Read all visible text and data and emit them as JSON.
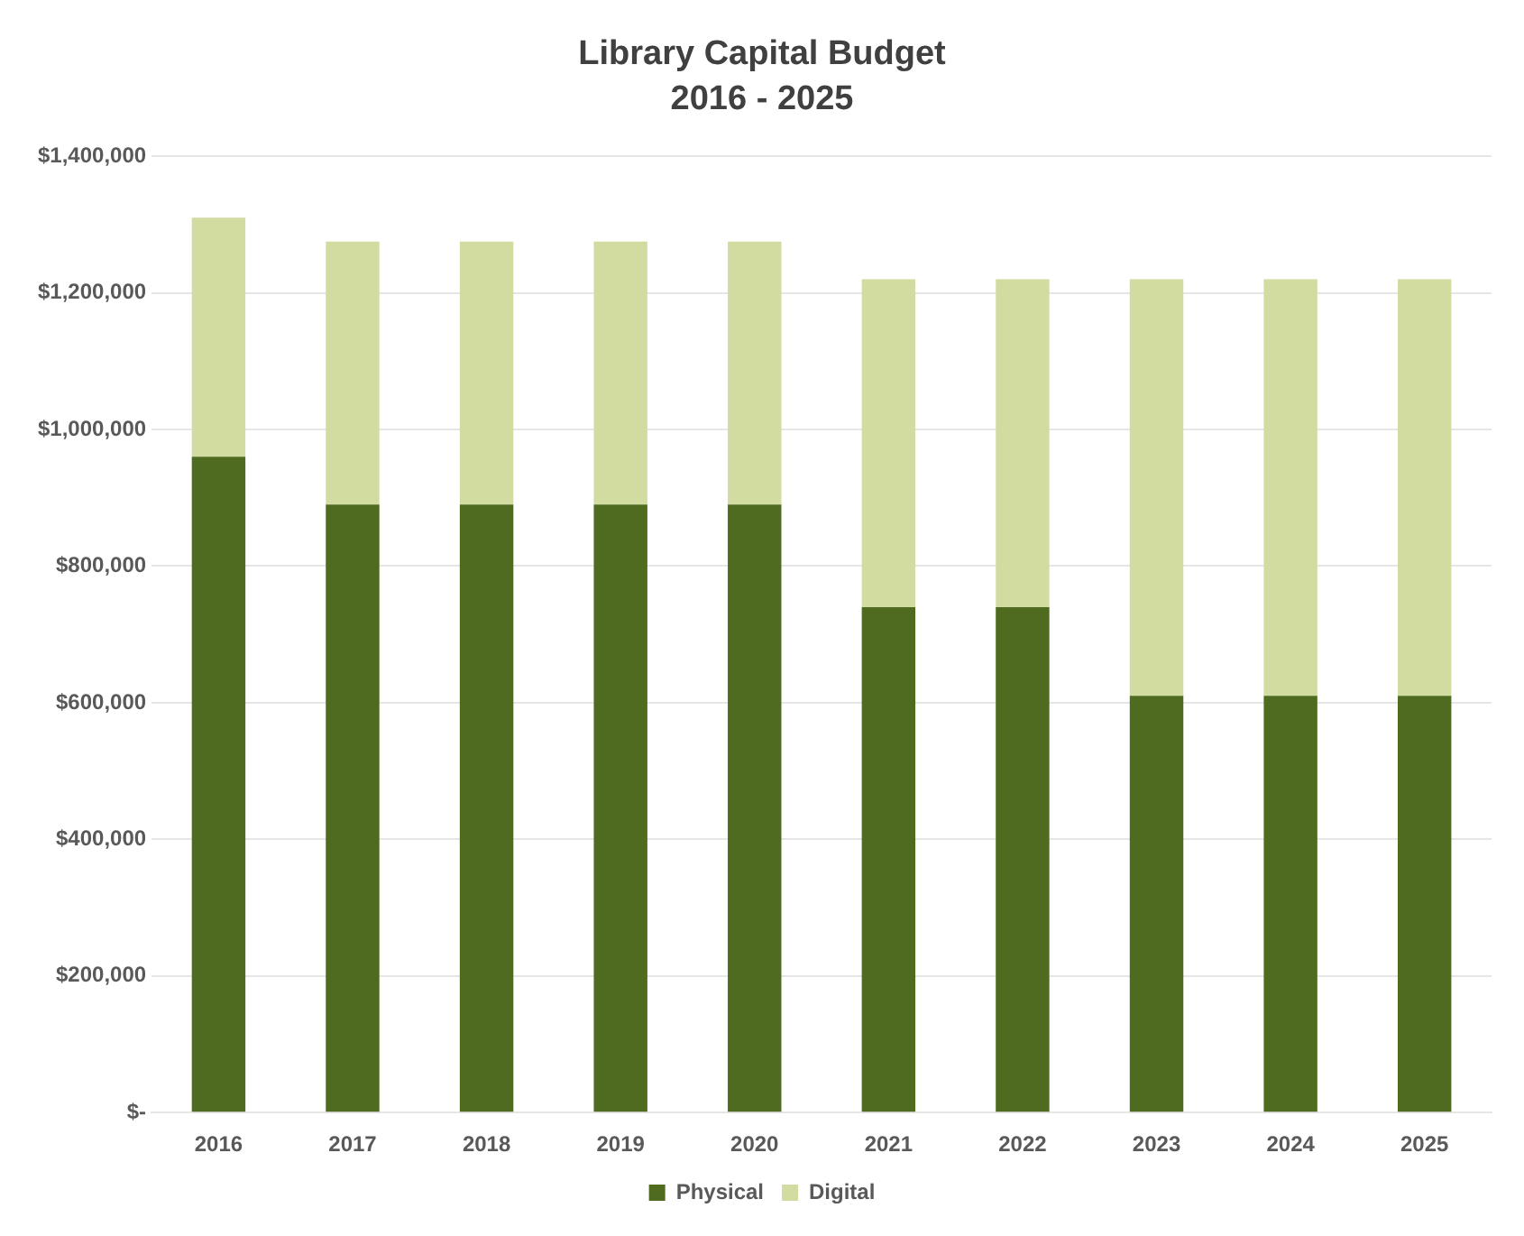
{
  "chart_data": {
    "type": "bar",
    "title": "Library Capital Budget",
    "subtitle": "2016 - 2025",
    "categories": [
      "2016",
      "2017",
      "2018",
      "2019",
      "2020",
      "2021",
      "2022",
      "2023",
      "2024",
      "2025"
    ],
    "series": [
      {
        "name": "Physical",
        "color": "#4e6b1f",
        "values": [
          960000,
          890000,
          890000,
          890000,
          890000,
          740000,
          740000,
          610000,
          610000,
          610000
        ]
      },
      {
        "name": "Digital",
        "color": "#d3dca0",
        "values": [
          350000,
          385000,
          385000,
          385000,
          385000,
          480000,
          480000,
          610000,
          610000,
          610000
        ]
      }
    ],
    "stacked": true,
    "ylim": [
      0,
      1400000
    ],
    "yticks": [
      {
        "value": 0,
        "label": "$-"
      },
      {
        "value": 200000,
        "label": "$200,000"
      },
      {
        "value": 400000,
        "label": "$400,000"
      },
      {
        "value": 600000,
        "label": "$600,000"
      },
      {
        "value": 800000,
        "label": "$800,000"
      },
      {
        "value": 1000000,
        "label": "$1,000,000"
      },
      {
        "value": 1200000,
        "label": "$1,200,000"
      },
      {
        "value": 1400000,
        "label": "$1,400,000"
      }
    ],
    "grid": "y",
    "legend": "bottom"
  }
}
